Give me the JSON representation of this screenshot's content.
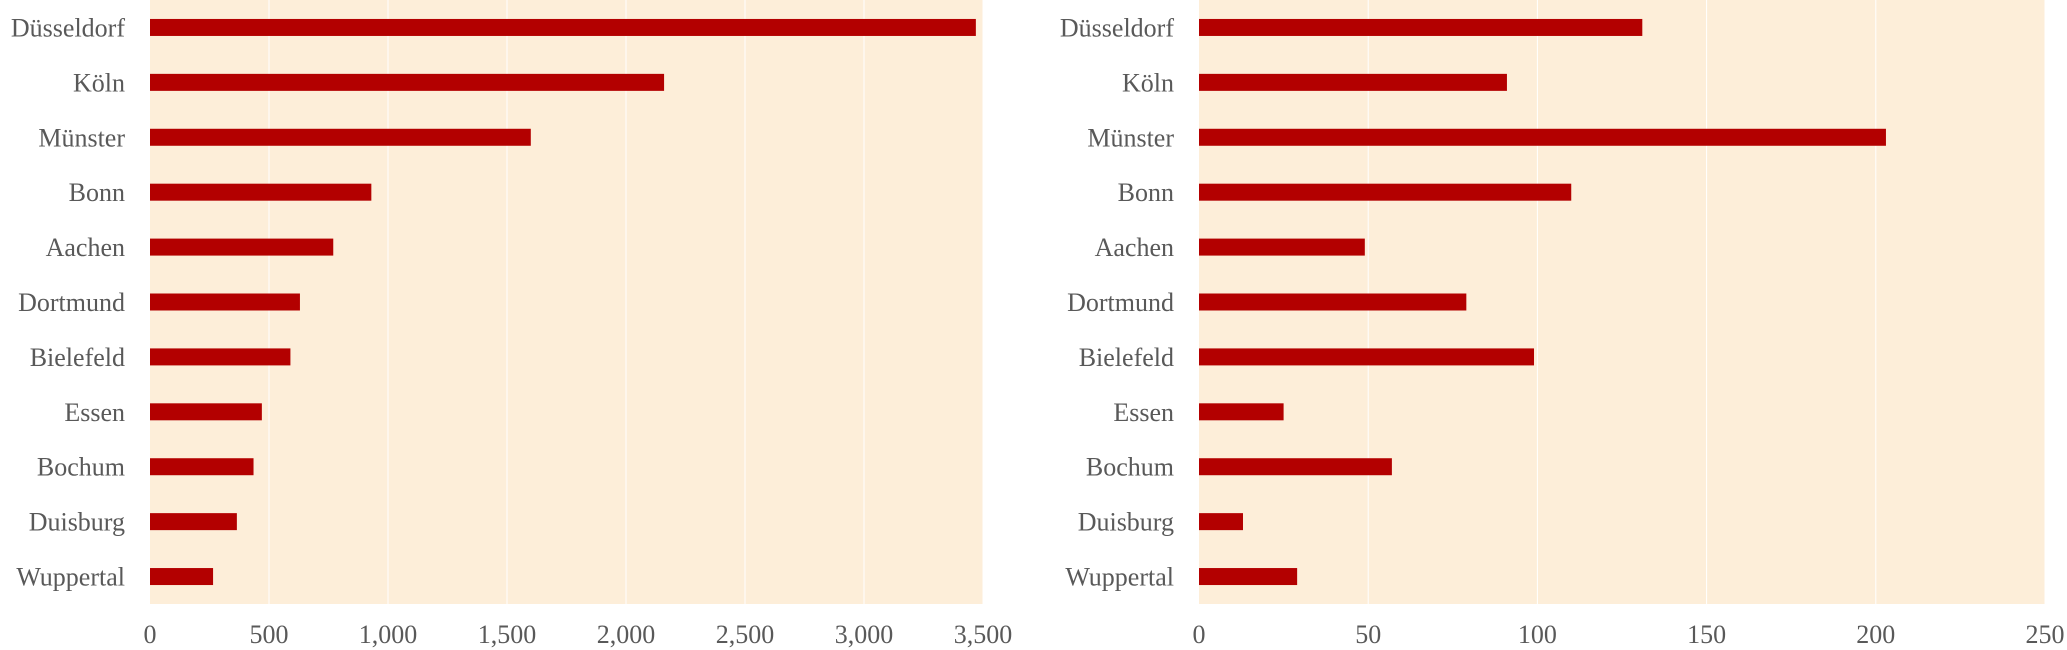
{
  "colors": {
    "plot_background": "#fdeed9",
    "bar": "#b30000",
    "text": "#595959",
    "gridline": "#ffffff"
  },
  "chart_data": [
    {
      "type": "bar",
      "orientation": "horizontal",
      "title": "",
      "xlabel": "",
      "ylabel": "",
      "categories": [
        "Düsseldorf",
        "Köln",
        "Münster",
        "Bonn",
        "Aachen",
        "Dortmund",
        "Bielefeld",
        "Essen",
        "Bochum",
        "Duisburg",
        "Wuppertal"
      ],
      "values": [
        3470,
        2160,
        1600,
        930,
        770,
        630,
        590,
        470,
        435,
        365,
        265
      ],
      "xlim": [
        0,
        3500
      ],
      "ticks": [
        0,
        500,
        1000,
        1500,
        2000,
        2500,
        3000,
        3500
      ],
      "tick_labels": [
        "0",
        "500",
        "1,000",
        "1,500",
        "2,000",
        "2,500",
        "3,000",
        "3,500"
      ],
      "grid": true,
      "legend": "none"
    },
    {
      "type": "bar",
      "orientation": "horizontal",
      "title": "",
      "xlabel": "",
      "ylabel": "",
      "categories": [
        "Düsseldorf",
        "Köln",
        "Münster",
        "Bonn",
        "Aachen",
        "Dortmund",
        "Bielefeld",
        "Essen",
        "Bochum",
        "Duisburg",
        "Wuppertal"
      ],
      "values": [
        131,
        91,
        203,
        110,
        49,
        79,
        99,
        25,
        57,
        13,
        29
      ],
      "xlim": [
        0,
        250
      ],
      "ticks": [
        0,
        50,
        100,
        150,
        200,
        250
      ],
      "tick_labels": [
        "0",
        "50",
        "100",
        "150",
        "200",
        "250"
      ],
      "grid": true,
      "legend": "none"
    }
  ]
}
